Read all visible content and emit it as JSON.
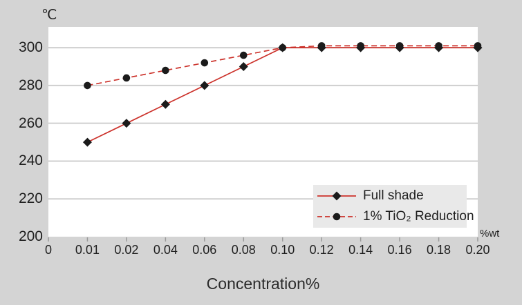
{
  "chart_data": {
    "type": "line",
    "title": "",
    "xlabel": "Concentration%",
    "ylabel": "℃",
    "x_axis_unit_label": "%wt",
    "categories": [
      "0",
      "0.01",
      "0.02",
      "0.04",
      "0.06",
      "0.08",
      "0.10",
      "0.12",
      "0.14",
      "0.16",
      "0.18",
      "0.20"
    ],
    "y_ticks": [
      200,
      220,
      240,
      260,
      280,
      300
    ],
    "ylim": [
      200,
      311
    ],
    "grid": true,
    "legend_position": "inside-bottom-right",
    "colors": {
      "line": "#cc322b",
      "marker": "#1b1b1b",
      "gridline": "#cfcfcf",
      "tick": "#9a9a9a",
      "plot_background": "#ffffff",
      "figure_background": "#d4d4d4",
      "legend_background": "#e9e9e9",
      "text": "#1f1f1f"
    },
    "series": [
      {
        "name": "Full shade",
        "line_style": "solid",
        "marker": "diamond",
        "start_category_index": 1,
        "x": [
          "0.01",
          "0.02",
          "0.04",
          "0.06",
          "0.08",
          "0.10",
          "0.12",
          "0.14",
          "0.16",
          "0.18",
          "0.20"
        ],
        "values": [
          250,
          260,
          270,
          280,
          290,
          300,
          300,
          300,
          300,
          300,
          300
        ]
      },
      {
        "name": "1% TiO₂ Reduction",
        "line_style": "dashed",
        "marker": "circle",
        "start_category_index": 1,
        "x": [
          "0.01",
          "0.02",
          "0.04",
          "0.06",
          "0.08",
          "0.10",
          "0.12",
          "0.14",
          "0.16",
          "0.18",
          "0.20"
        ],
        "values": [
          280,
          284,
          288,
          292,
          296,
          300,
          301,
          301,
          301,
          301,
          301
        ]
      }
    ]
  }
}
